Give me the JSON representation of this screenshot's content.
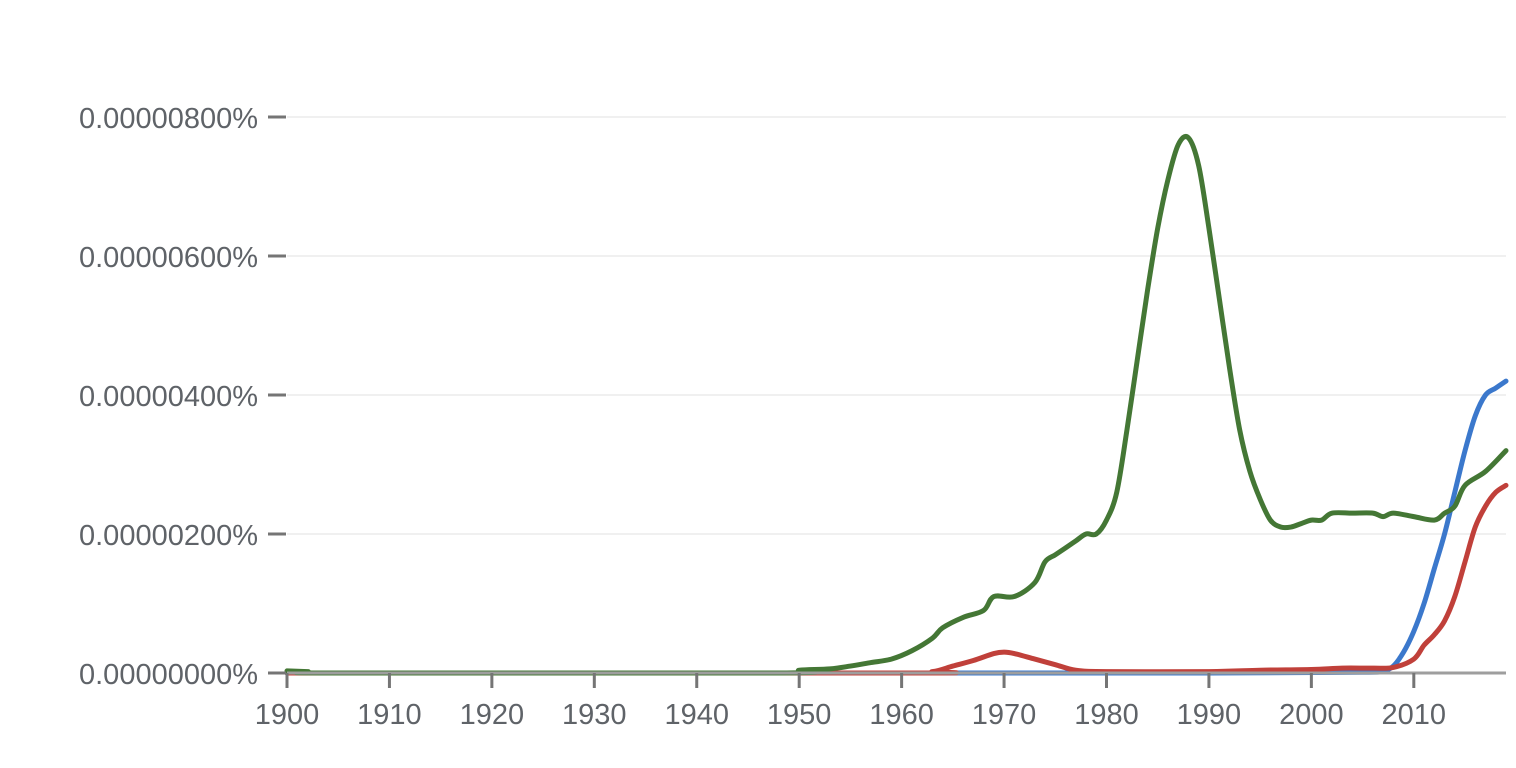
{
  "chart_data": {
    "type": "line",
    "title": "",
    "xlabel": "",
    "ylabel": "",
    "xlim": [
      1900,
      2019
    ],
    "ylim": [
      0,
      8e-06
    ],
    "grid": true,
    "legend": "none",
    "x_ticks": [
      {
        "value": 1900,
        "label": "1900"
      },
      {
        "value": 1910,
        "label": "1910"
      },
      {
        "value": 1920,
        "label": "1920"
      },
      {
        "value": 1930,
        "label": "1930"
      },
      {
        "value": 1940,
        "label": "1940"
      },
      {
        "value": 1950,
        "label": "1950"
      },
      {
        "value": 1960,
        "label": "1960"
      },
      {
        "value": 1970,
        "label": "1970"
      },
      {
        "value": 1980,
        "label": "1980"
      },
      {
        "value": 1990,
        "label": "1990"
      },
      {
        "value": 2000,
        "label": "2000"
      },
      {
        "value": 2010,
        "label": "2010"
      }
    ],
    "y_ticks": [
      {
        "value": 0,
        "label": "0.00000000%"
      },
      {
        "value": 2e-06,
        "label": "0.00000200%"
      },
      {
        "value": 4e-06,
        "label": "0.00000400%"
      },
      {
        "value": 6e-06,
        "label": "0.00000600%"
      },
      {
        "value": 8e-06,
        "label": "0.00000800%"
      }
    ],
    "series": [
      {
        "color": "#3b78cc",
        "points": [
          [
            1900,
            0
          ],
          [
            1950,
            0
          ],
          [
            1990,
            0
          ],
          [
            2005,
            1e-08
          ],
          [
            2007,
            3e-08
          ],
          [
            2008,
            1e-07
          ],
          [
            2009,
            3e-07
          ],
          [
            2010,
            6e-07
          ],
          [
            2011,
            1e-06
          ],
          [
            2012,
            1.5e-06
          ],
          [
            2013,
            2e-06
          ],
          [
            2014,
            2.6e-06
          ],
          [
            2015,
            3.2e-06
          ],
          [
            2016,
            3.7e-06
          ],
          [
            2017,
            4e-06
          ],
          [
            2018,
            4.1e-06
          ],
          [
            2019,
            4.2e-06
          ]
        ]
      },
      {
        "color": "#c0403a",
        "points": [
          [
            1900,
            0
          ],
          [
            1960,
            0
          ],
          [
            1963,
            2e-08
          ],
          [
            1965,
            1e-07
          ],
          [
            1967,
            1.8e-07
          ],
          [
            1969,
            2.8e-07
          ],
          [
            1970,
            3e-07
          ],
          [
            1971,
            2.8e-07
          ],
          [
            1973,
            2e-07
          ],
          [
            1975,
            1.2e-07
          ],
          [
            1977,
            4e-08
          ],
          [
            1980,
            2e-08
          ],
          [
            1990,
            2e-08
          ],
          [
            1995,
            4e-08
          ],
          [
            2000,
            5e-08
          ],
          [
            2003,
            7e-08
          ],
          [
            2006,
            7e-08
          ],
          [
            2008,
            8e-08
          ],
          [
            2010,
            2e-07
          ],
          [
            2011,
            4e-07
          ],
          [
            2012,
            5.5e-07
          ],
          [
            2013,
            7.5e-07
          ],
          [
            2014,
            1.1e-06
          ],
          [
            2015,
            1.6e-06
          ],
          [
            2016,
            2.1e-06
          ],
          [
            2017,
            2.4e-06
          ],
          [
            2018,
            2.6e-06
          ],
          [
            2019,
            2.7e-06
          ]
        ]
      },
      {
        "color": "#447735",
        "points": [
          [
            1900,
            3e-08
          ],
          [
            1902,
            2e-08
          ],
          [
            1905,
            0
          ],
          [
            1948,
            0
          ],
          [
            1950,
            4e-08
          ],
          [
            1953,
            6e-08
          ],
          [
            1955,
            1e-07
          ],
          [
            1957,
            1.5e-07
          ],
          [
            1959,
            2e-07
          ],
          [
            1961,
            3.2e-07
          ],
          [
            1963,
            5e-07
          ],
          [
            1964,
            6.5e-07
          ],
          [
            1966,
            8e-07
          ],
          [
            1968,
            9e-07
          ],
          [
            1969,
            1.1e-06
          ],
          [
            1971,
            1.1e-06
          ],
          [
            1973,
            1.3e-06
          ],
          [
            1974,
            1.6e-06
          ],
          [
            1975,
            1.7e-06
          ],
          [
            1976,
            1.8e-06
          ],
          [
            1977,
            1.9e-06
          ],
          [
            1978,
            2e-06
          ],
          [
            1979,
            2e-06
          ],
          [
            1980,
            2.2e-06
          ],
          [
            1981,
            2.6e-06
          ],
          [
            1982,
            3.5e-06
          ],
          [
            1983,
            4.5e-06
          ],
          [
            1984,
            5.5e-06
          ],
          [
            1985,
            6.4e-06
          ],
          [
            1986,
            7.1e-06
          ],
          [
            1987,
            7.6e-06
          ],
          [
            1988,
            7.7e-06
          ],
          [
            1989,
            7.3e-06
          ],
          [
            1990,
            6.4e-06
          ],
          [
            1991,
            5.4e-06
          ],
          [
            1992,
            4.4e-06
          ],
          [
            1993,
            3.5e-06
          ],
          [
            1994,
            2.9e-06
          ],
          [
            1995,
            2.5e-06
          ],
          [
            1996,
            2.2e-06
          ],
          [
            1997,
            2.1e-06
          ],
          [
            1998,
            2.1e-06
          ],
          [
            1999,
            2.15e-06
          ],
          [
            2000,
            2.2e-06
          ],
          [
            2001,
            2.2e-06
          ],
          [
            2002,
            2.3e-06
          ],
          [
            2004,
            2.3e-06
          ],
          [
            2006,
            2.3e-06
          ],
          [
            2007,
            2.25e-06
          ],
          [
            2008,
            2.3e-06
          ],
          [
            2010,
            2.25e-06
          ],
          [
            2012,
            2.2e-06
          ],
          [
            2013,
            2.3e-06
          ],
          [
            2014,
            2.4e-06
          ],
          [
            2015,
            2.7e-06
          ],
          [
            2017,
            2.9e-06
          ],
          [
            2019,
            3.2e-06
          ]
        ]
      }
    ]
  }
}
